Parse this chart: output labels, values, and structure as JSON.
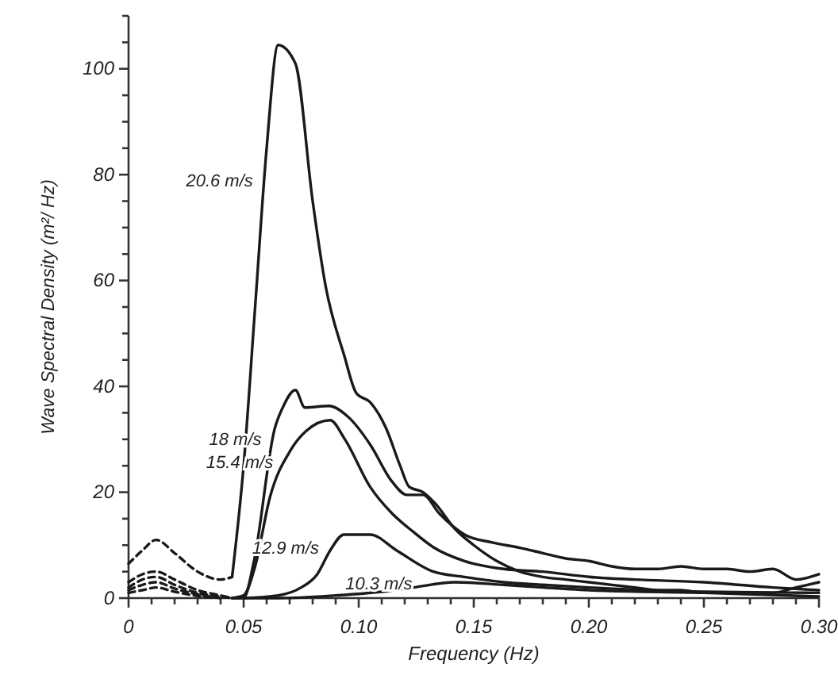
{
  "chart_data": {
    "type": "line",
    "xlabel": "Frequency (Hz)",
    "ylabel": "Wave Spectral Density (m²/ Hz)",
    "xlim": [
      0,
      0.3
    ],
    "ylim": [
      0,
      110
    ],
    "xticks": [
      {
        "value": 0,
        "label": "0"
      },
      {
        "value": 0.01,
        "label": null
      },
      {
        "value": 0.02,
        "label": null
      },
      {
        "value": 0.03,
        "label": null
      },
      {
        "value": 0.04,
        "label": null
      },
      {
        "value": 0.05,
        "label": "0.05"
      },
      {
        "value": 0.06,
        "label": null
      },
      {
        "value": 0.07,
        "label": null
      },
      {
        "value": 0.08,
        "label": null
      },
      {
        "value": 0.09,
        "label": null
      },
      {
        "value": 0.1,
        "label": "0.10"
      },
      {
        "value": 0.11,
        "label": null
      },
      {
        "value": 0.12,
        "label": null
      },
      {
        "value": 0.13,
        "label": null
      },
      {
        "value": 0.14,
        "label": null
      },
      {
        "value": 0.15,
        "label": "0.15"
      },
      {
        "value": 0.16,
        "label": null
      },
      {
        "value": 0.17,
        "label": null
      },
      {
        "value": 0.18,
        "label": null
      },
      {
        "value": 0.19,
        "label": null
      },
      {
        "value": 0.2,
        "label": "0.20"
      },
      {
        "value": 0.21,
        "label": null
      },
      {
        "value": 0.22,
        "label": null
      },
      {
        "value": 0.23,
        "label": null
      },
      {
        "value": 0.24,
        "label": null
      },
      {
        "value": 0.25,
        "label": "0.25"
      },
      {
        "value": 0.26,
        "label": null
      },
      {
        "value": 0.27,
        "label": null
      },
      {
        "value": 0.28,
        "label": null
      },
      {
        "value": 0.29,
        "label": null
      },
      {
        "value": 0.3,
        "label": "0.30"
      }
    ],
    "yticks": [
      0,
      {
        "value": 5,
        "label": null
      },
      {
        "value": 10,
        "label": null
      },
      {
        "value": 15,
        "label": null
      },
      20,
      {
        "value": 25,
        "label": null
      },
      {
        "value": 30,
        "label": null
      },
      {
        "value": 35,
        "label": null
      },
      40,
      {
        "value": 45,
        "label": null
      },
      {
        "value": 50,
        "label": null
      },
      {
        "value": 55,
        "label": null
      },
      60,
      {
        "value": 65,
        "label": null
      },
      {
        "value": 70,
        "label": null
      },
      {
        "value": 75,
        "label": null
      },
      80,
      {
        "value": 85,
        "label": null
      },
      {
        "value": 90,
        "label": null
      },
      {
        "value": 95,
        "label": null
      },
      100,
      {
        "value": 105,
        "label": null
      },
      {
        "value": 110,
        "label": null
      }
    ],
    "grid": false,
    "marker": "none",
    "line_style": "solid",
    "series": [
      {
        "name": "20.6 m/s",
        "color": "#1a1a1a",
        "x": [
          0.045,
          0.05,
          0.055,
          0.06,
          0.065,
          0.0725,
          0.08,
          0.0856,
          0.0936,
          0.099,
          0.105,
          0.112,
          0.118,
          0.122,
          0.128,
          0.133,
          0.142,
          0.15,
          0.16,
          0.17,
          0.18,
          0.19,
          0.2,
          0.21,
          0.22,
          0.23,
          0.24,
          0.25,
          0.26,
          0.27,
          0.28,
          0.29,
          0.3
        ],
        "values": [
          4,
          25,
          55,
          85,
          104.5,
          101,
          75,
          59,
          46,
          38.7,
          37,
          32,
          25,
          21,
          20,
          18,
          13,
          10,
          7,
          5,
          4,
          3.5,
          3,
          2.5,
          2,
          1.5,
          1.5,
          1,
          1,
          1,
          1,
          2,
          3
        ]
      },
      {
        "name": "18 m/s",
        "color": "#1a1a1a",
        "x": [
          0.045,
          0.05,
          0.0545,
          0.0635,
          0.067,
          0.0725,
          0.0766,
          0.087,
          0.096,
          0.105,
          0.1145,
          0.121,
          0.128,
          0.135,
          0.146,
          0.158,
          0.17,
          0.18,
          0.19,
          0.2,
          0.21,
          0.22,
          0.23,
          0.24,
          0.25,
          0.26,
          0.27,
          0.28,
          0.29,
          0.3
        ],
        "values": [
          0,
          0,
          7,
          32,
          36,
          39.3,
          36,
          36.3,
          34,
          29,
          22,
          19.5,
          19.5,
          16,
          12,
          10.5,
          9.5,
          8.5,
          7.5,
          7,
          6,
          5.5,
          5.5,
          6,
          5.5,
          5.5,
          5,
          5.5,
          3.5,
          4.5
        ]
      },
      {
        "name": "15.4 m/s",
        "color": "#1a1a1a",
        "x": [
          0.045,
          0.05,
          0.055,
          0.0614,
          0.0705,
          0.077,
          0.0876,
          0.094,
          0.105,
          0.1145,
          0.1235,
          0.1325,
          0.146,
          0.163,
          0.18,
          0.2,
          0.22,
          0.25,
          0.28,
          0.3
        ],
        "values": [
          0,
          0.5,
          6,
          19,
          28,
          31.5,
          33.6,
          30,
          21,
          16,
          12.6,
          9.6,
          7,
          5.5,
          5,
          4,
          3.5,
          3,
          2,
          1.5
        ]
      },
      {
        "name": "12.9 m/s",
        "color": "#1a1a1a",
        "x": [
          0.05,
          0.065,
          0.075,
          0.082,
          0.0876,
          0.0936,
          0.105,
          0.1165,
          0.1325,
          0.146,
          0.163,
          0.18,
          0.2,
          0.25,
          0.3
        ],
        "values": [
          0,
          0.5,
          2,
          4.5,
          9,
          12,
          12,
          9,
          5,
          4,
          3,
          2.5,
          2,
          1.2,
          1
        ]
      },
      {
        "name": "10.3 m/s",
        "color": "#1a1a1a",
        "x": [
          0.045,
          0.065,
          0.09,
          0.11,
          0.1235,
          0.142,
          0.163,
          0.18,
          0.2,
          0.25,
          0.3
        ],
        "values": [
          0,
          0,
          0.5,
          1.2,
          2,
          3,
          2.5,
          2,
          1.5,
          1,
          0.3
        ]
      },
      {
        "color": "#1a1a1a",
        "line_style": "dashed",
        "x": [
          0,
          0.006,
          0.012,
          0.02,
          0.03,
          0.04,
          0.045
        ],
        "values": [
          6.5,
          9,
          11,
          8.5,
          5,
          3.5,
          4
        ]
      },
      {
        "color": "#1a1a1a",
        "line_style": "dashed",
        "x": [
          0,
          0.006,
          0.012,
          0.02,
          0.03,
          0.04,
          0.045
        ],
        "values": [
          3,
          4.5,
          5,
          3.5,
          1.5,
          0.5,
          0
        ]
      },
      {
        "color": "#1a1a1a",
        "line_style": "dashed",
        "x": [
          0,
          0.006,
          0.012,
          0.02,
          0.03,
          0.04,
          0.045
        ],
        "values": [
          2,
          3.5,
          4,
          2.5,
          1,
          0.3,
          0
        ]
      },
      {
        "color": "#1a1a1a",
        "line_style": "dashed",
        "x": [
          0,
          0.006,
          0.012,
          0.02,
          0.03,
          0.04
        ],
        "values": [
          1.5,
          2.5,
          3,
          1.8,
          0.7,
          0
        ]
      },
      {
        "color": "#1a1a1a",
        "line_style": "dashed",
        "x": [
          0,
          0.006,
          0.012,
          0.02,
          0.03,
          0.037
        ],
        "values": [
          1,
          1.5,
          2,
          1.2,
          0.4,
          0.1
        ]
      }
    ]
  }
}
